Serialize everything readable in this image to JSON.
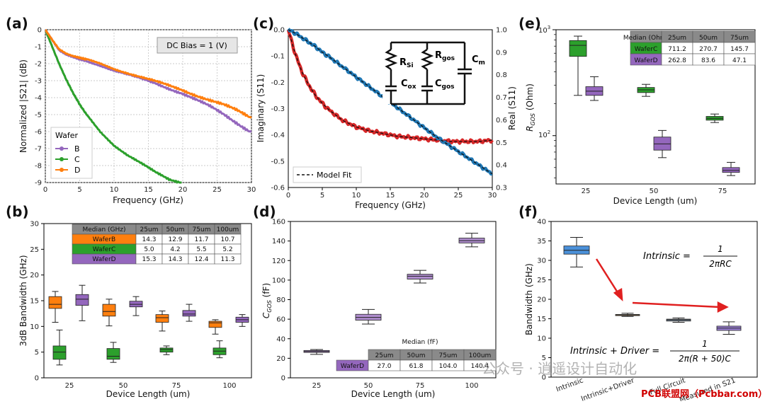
{
  "panels": {
    "a": {
      "label": "(a)",
      "xlabel": "Frequency (GHz)",
      "ylabel": "Normalized |S21| (dB)",
      "xticks": [
        "0",
        "5",
        "10",
        "15",
        "20",
        "25",
        "30"
      ],
      "yticks": [
        "0",
        "-1",
        "-2",
        "-3",
        "-4",
        "-5",
        "-6",
        "-7",
        "-8",
        "-9"
      ],
      "annotation": "DC Bias = 1 (V)",
      "legend_title": "Wafer"
    },
    "b": {
      "label": "(b)",
      "xlabel": "Device Length (um)",
      "ylabel": "3dB Bandwidth (GHz)",
      "xticks": [
        "25",
        "50",
        "75",
        "100"
      ],
      "yticks": [
        "0",
        "5",
        "10",
        "15",
        "20",
        "25",
        "30"
      ]
    },
    "c": {
      "label": "(c)",
      "xlabel": "Frequency (GHz)",
      "ylabel_left": "Imaginary (S11)",
      "ylabel_right": "Real (S11)",
      "xticks": [
        "0",
        "5",
        "10",
        "15",
        "20",
        "25",
        "30"
      ],
      "yticks_left": [
        "0.0",
        "-0.1",
        "-0.2",
        "-0.3",
        "-0.4",
        "-0.5",
        "-0.6"
      ],
      "yticks_right": [
        "1.0",
        "0.9",
        "0.8",
        "0.7",
        "0.6",
        "0.5",
        "0.4",
        "0.3"
      ],
      "legend": "Model Fit",
      "circuit": {
        "rsi": "R",
        "rsi_sub": "Si",
        "rgos": "R",
        "rgos_sub": "gos",
        "cm": "C",
        "cm_sub": "m",
        "cox": "C",
        "cox_sub": "ox",
        "cgos": "C",
        "cgos_sub": "gos"
      }
    },
    "d": {
      "label": "(d)",
      "xlabel": "Device Length (um)",
      "ylabel_main": "C",
      "ylabel_sub": "GOS",
      "ylabel_unit": " (fF)",
      "xticks": [
        "25",
        "50",
        "75",
        "100"
      ],
      "yticks": [
        "0",
        "20",
        "40",
        "60",
        "80",
        "100",
        "120",
        "140",
        "160"
      ]
    },
    "e": {
      "label": "(e)",
      "xlabel": "Device Length (um)",
      "ylabel_main": "R",
      "ylabel_sub": "GOS",
      "ylabel_unit": " (Ohm)",
      "xticks": [
        "25",
        "50",
        "75"
      ],
      "ytick_major_1": "10",
      "ytick_major_1_exp": "3",
      "ytick_major_2": "10",
      "ytick_major_2_exp": "2"
    },
    "f": {
      "label": "(f)",
      "ylabel": "Bandwidth (GHz)",
      "yticks": [
        "0",
        "5",
        "10",
        "15",
        "20",
        "25",
        "30",
        "35",
        "40"
      ],
      "xticks": [
        "Intrinsic",
        "Intrinsic+Driver",
        "Full Circuit",
        "Measured in S21"
      ],
      "eq1_lhs": "Intrinsic = ",
      "eq1_num": "1",
      "eq1_den": "2πRC",
      "eq2_lhs": "Intrinsic + Driver = ",
      "eq2_num": "1",
      "eq2_den": "2π(R + 50)C"
    }
  },
  "tables": {
    "b": {
      "header": [
        "Median (GHz)",
        "25um",
        "50um",
        "75um",
        "100um"
      ],
      "rows": [
        [
          "WaferB",
          "14.3",
          "12.9",
          "11.7",
          "10.7"
        ],
        [
          "WaferC",
          "5.0",
          "4.2",
          "5.5",
          "5.2"
        ],
        [
          "WaferD",
          "15.3",
          "14.3",
          "12.4",
          "11.3"
        ]
      ]
    },
    "d": {
      "title": "Median (fF)",
      "header": [
        "",
        "25um",
        "50um",
        "75um",
        "100um"
      ],
      "rows": [
        [
          "WaferD",
          "27.0",
          "61.8",
          "104.0",
          "140.4"
        ]
      ]
    },
    "e": {
      "header": [
        "Median (Ohm)",
        "25um",
        "50um",
        "75um"
      ],
      "rows": [
        [
          "WaferC",
          "711.2",
          "270.7",
          "145.7"
        ],
        [
          "WaferD",
          "262.8",
          "83.6",
          "47.1"
        ]
      ]
    }
  },
  "watermark": "公众号 · 逍遥设计自动化",
  "watermark2": "PCB联盟网（Pcbbar.com）",
  "colors": {
    "B": "#9467bd",
    "C": "#2ca02c",
    "D": "#ff7f0e",
    "red": "#d62728",
    "blue": "#1f77b4"
  },
  "chart_data": [
    {
      "panel": "a",
      "type": "line",
      "title": "",
      "xlabel": "Frequency (GHz)",
      "ylabel": "Normalized |S21| (dB)",
      "xlim": [
        0,
        30
      ],
      "ylim": [
        -9,
        0
      ],
      "x": [
        0,
        1,
        2,
        3,
        4,
        5,
        6,
        8,
        10,
        12,
        14,
        16,
        18,
        20,
        22,
        24,
        26,
        28,
        30
      ],
      "series": [
        {
          "name": "B",
          "values": [
            0,
            -0.6,
            -1.2,
            -1.45,
            -1.6,
            -1.75,
            -1.85,
            -2.1,
            -2.4,
            -2.65,
            -2.9,
            -3.15,
            -3.45,
            -3.75,
            -4.15,
            -4.55,
            -5.0,
            -5.5,
            -6.0
          ]
        },
        {
          "name": "C",
          "values": [
            0,
            -1.0,
            -2.0,
            -2.9,
            -3.7,
            -4.4,
            -5.0,
            -6.0,
            -6.8,
            -7.4,
            -7.9,
            -8.4,
            -8.8,
            -9.0,
            null,
            null,
            null,
            null,
            null
          ]
        },
        {
          "name": "D",
          "values": [
            0,
            -0.6,
            -1.15,
            -1.4,
            -1.55,
            -1.65,
            -1.75,
            -2.0,
            -2.3,
            -2.55,
            -2.8,
            -3.05,
            -3.3,
            -3.55,
            -3.85,
            -4.15,
            -4.45,
            -4.8,
            -5.2
          ]
        }
      ]
    },
    {
      "panel": "b",
      "type": "box",
      "categories": [
        "25",
        "50",
        "75",
        "100"
      ],
      "xlabel": "Device Length (um)",
      "ylabel": "3dB Bandwidth (GHz)",
      "ylim": [
        0,
        30
      ],
      "series": [
        {
          "name": "WaferB",
          "boxes": [
            [
              10.8,
              13.5,
              14.3,
              15.8,
              16.8
            ],
            [
              10.1,
              12.0,
              12.9,
              14.3,
              15.3
            ],
            [
              9.1,
              10.8,
              11.7,
              12.3,
              13.0
            ],
            [
              8.5,
              9.8,
              10.7,
              11.0,
              11.3
            ]
          ]
        },
        {
          "name": "WaferC",
          "boxes": [
            [
              2.5,
              3.6,
              5.0,
              6.2,
              9.3
            ],
            [
              3.0,
              3.6,
              4.2,
              5.7,
              6.9
            ],
            [
              4.5,
              5.0,
              5.5,
              5.8,
              6.2
            ],
            [
              3.9,
              4.5,
              5.2,
              5.8,
              7.2
            ]
          ]
        },
        {
          "name": "WaferD",
          "boxes": [
            [
              11.1,
              14.1,
              15.3,
              16.2,
              18.0
            ],
            [
              12.1,
              13.8,
              14.3,
              14.9,
              15.8
            ],
            [
              11.0,
              12.0,
              12.4,
              13.1,
              14.3
            ],
            [
              10.0,
              10.8,
              11.3,
              11.8,
              12.3
            ]
          ]
        }
      ]
    },
    {
      "panel": "c",
      "type": "line",
      "xlabel": "Frequency (GHz)",
      "ylabel": "Imaginary (S11)",
      "y2label": "Real (S11)",
      "xlim": [
        0,
        30
      ],
      "ylim": [
        -0.6,
        0
      ],
      "y2lim": [
        0.3,
        1.0
      ],
      "x": [
        0,
        1,
        2,
        3,
        4,
        5,
        6,
        8,
        10,
        12,
        14,
        16,
        18,
        20,
        22,
        24,
        26,
        28,
        30
      ],
      "series": [
        {
          "name": "Imaginary (S11)",
          "axis": "left",
          "values": [
            0,
            -0.09,
            -0.16,
            -0.21,
            -0.25,
            -0.28,
            -0.305,
            -0.345,
            -0.37,
            -0.385,
            -0.395,
            -0.405,
            -0.41,
            -0.415,
            -0.42,
            -0.425,
            -0.425,
            -0.425,
            -0.42
          ]
        },
        {
          "name": "Real (S11)",
          "axis": "right",
          "values": [
            1.0,
            0.985,
            0.965,
            0.945,
            0.925,
            0.9,
            0.88,
            0.835,
            0.79,
            0.745,
            0.7,
            0.655,
            0.61,
            0.565,
            0.52,
            0.48,
            0.44,
            0.4,
            0.36
          ]
        }
      ]
    },
    {
      "panel": "d",
      "type": "box",
      "categories": [
        "25",
        "50",
        "75",
        "100"
      ],
      "xlabel": "Device Length (um)",
      "ylabel": "C_GOS (fF)",
      "ylim": [
        0,
        160
      ],
      "series": [
        {
          "name": "WaferD",
          "boxes": [
            [
              24.0,
              26.0,
              27.0,
              28.0,
              29.0
            ],
            [
              55.0,
              59.0,
              61.8,
              65.0,
              70.0
            ],
            [
              97.0,
              101.0,
              104.0,
              106.0,
              110.0
            ],
            [
              134.0,
              138.0,
              140.4,
              143.0,
              148.0
            ]
          ]
        }
      ]
    },
    {
      "panel": "e",
      "type": "box",
      "yscale": "log",
      "categories": [
        "25",
        "50",
        "75"
      ],
      "xlabel": "Device Length (um)",
      "ylabel": "R_GOS (Ohm)",
      "ylim": [
        35,
        1000
      ],
      "series": [
        {
          "name": "WaferC",
          "boxes": [
            [
              240,
              560,
              711.2,
              790,
              870
            ],
            [
              235,
              255,
              270.7,
              285,
              305
            ],
            [
              133,
              140,
              145.7,
              152,
              160
            ]
          ]
        },
        {
          "name": "WaferD",
          "boxes": [
            [
              215,
              240,
              262.8,
              290,
              360
            ],
            [
              62,
              73,
              83.6,
              97,
              112
            ],
            [
              42,
              45,
              47.1,
              50,
              56
            ]
          ]
        }
      ]
    },
    {
      "panel": "f",
      "type": "box",
      "categories": [
        "Intrinsic",
        "Intrinsic+Driver",
        "Full Circuit",
        "Measured in S21"
      ],
      "ylabel": "Bandwidth (GHz)",
      "ylim": [
        0,
        40
      ],
      "series": [
        {
          "name": "Bandwidth",
          "boxes": [
            [
              28.3,
              31.6,
              32.6,
              33.7,
              35.9
            ],
            [
              15.6,
              15.8,
              16.0,
              16.1,
              16.4
            ],
            [
              14.1,
              14.4,
              14.7,
              14.9,
              15.2
            ],
            [
              11.0,
              12.0,
              12.6,
              13.1,
              14.2
            ]
          ]
        }
      ]
    }
  ]
}
